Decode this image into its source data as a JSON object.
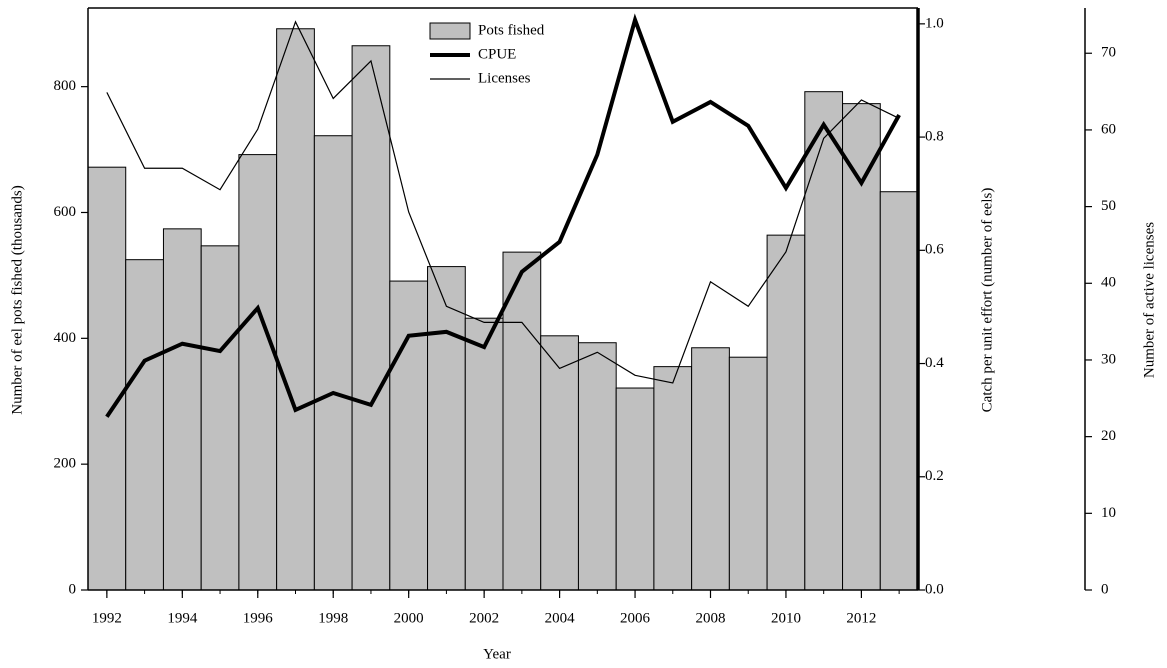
{
  "chart_data": {
    "type": "combo",
    "x_label": "Year",
    "y_label": "Number of eel pots fished (thousands)",
    "y2_label": "Catch per unit effort (number of eels)",
    "y3_label": "Number of active licenses",
    "x": [
      1992,
      1993,
      1994,
      1995,
      1996,
      1997,
      1998,
      1999,
      2000,
      2001,
      2002,
      2003,
      2004,
      2005,
      2006,
      2007,
      2008,
      2009,
      2010,
      2011,
      2012,
      2013
    ],
    "xlim": [
      1991.5,
      2013.5
    ],
    "xticks": [
      1992,
      1994,
      1996,
      1998,
      2000,
      2002,
      2004,
      2006,
      2008,
      2010,
      2012
    ],
    "ylim": [
      0,
      925
    ],
    "yticks": [
      0,
      200,
      400,
      600,
      800
    ],
    "y2lim": [
      0,
      1.028
    ],
    "y2ticks": [
      {
        "value": 0,
        "label": "0.0"
      },
      {
        "value": 0.2,
        "label": "0.2"
      },
      {
        "value": 0.4,
        "label": "0.4"
      },
      {
        "value": 0.6,
        "label": "0.6"
      },
      {
        "value": 0.8,
        "label": "0.8"
      },
      {
        "value": 1,
        "label": "1.0"
      }
    ],
    "y3lim": [
      0,
      75.9
    ],
    "y3ticks": [
      0,
      10,
      20,
      30,
      40,
      50,
      60,
      70
    ],
    "series": [
      {
        "name": "Pots fished",
        "type": "bar",
        "color": "#c0c0c0",
        "values": [
          672,
          525,
          574,
          547,
          692,
          892,
          722,
          865,
          491,
          514,
          432,
          537,
          404,
          393,
          321,
          355,
          385,
          370,
          564,
          792,
          773,
          633
        ]
      },
      {
        "name": "CPUE",
        "type": "line",
        "axis": "y2",
        "color": "#000000",
        "width": 4,
        "values": [
          0.306,
          0.405,
          0.435,
          0.422,
          0.498,
          0.318,
          0.348,
          0.327,
          0.449,
          0.456,
          0.429,
          0.562,
          0.615,
          0.769,
          1.007,
          0.827,
          0.862,
          0.82,
          0.71,
          0.822,
          0.719,
          0.839
        ]
      },
      {
        "name": "Licenses",
        "type": "line",
        "axis": "y3",
        "color": "#000000",
        "width": 1.2,
        "values": [
          64.9,
          55.0,
          55.0,
          52.2,
          60.1,
          74.1,
          64.1,
          69.0,
          49.3,
          37.0,
          34.9,
          34.9,
          28.9,
          31.0,
          28.0,
          27.0,
          40.2,
          37.0,
          44.1,
          58.9,
          63.9,
          61.5
        ]
      }
    ]
  }
}
